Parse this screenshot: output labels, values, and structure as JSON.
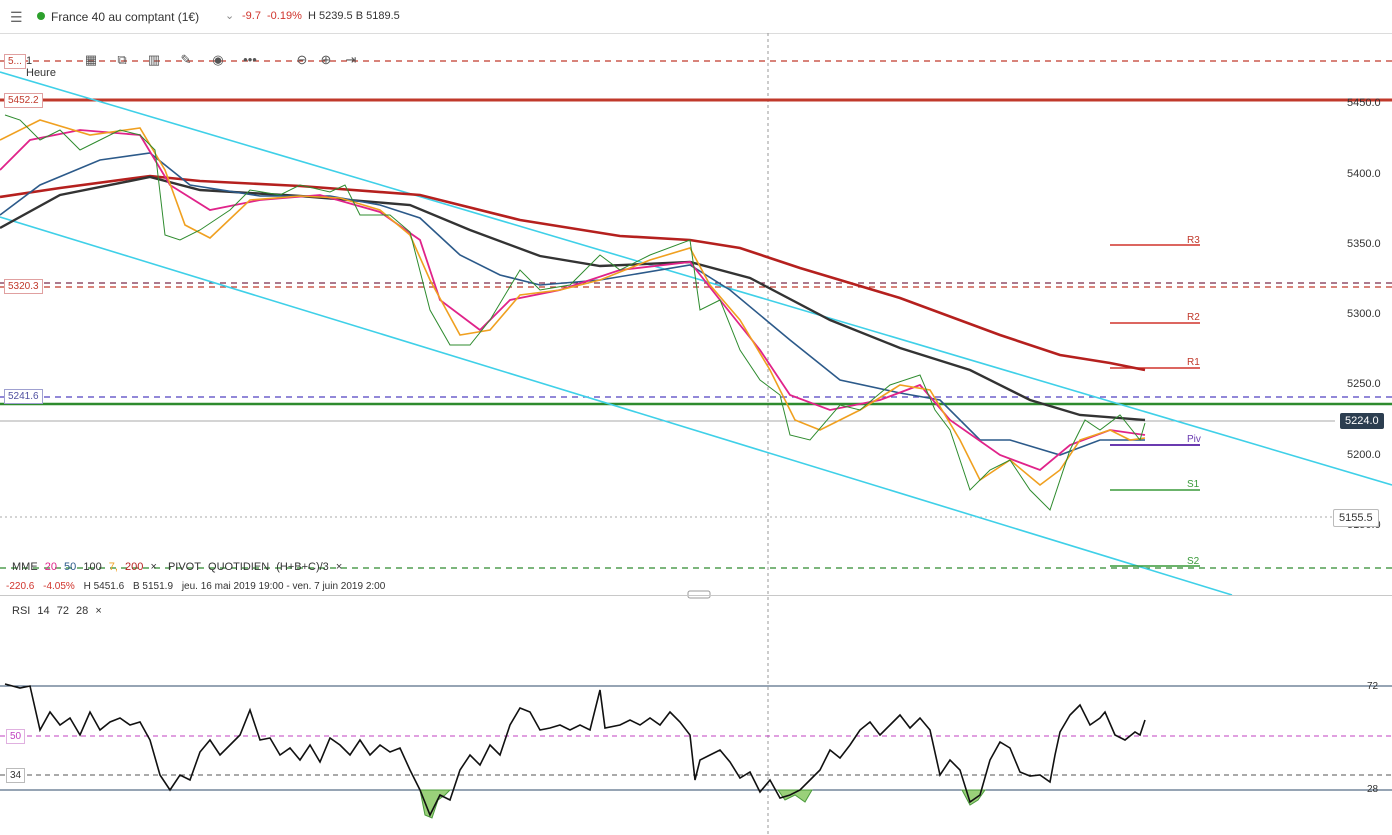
{
  "header": {
    "instrument": "France 40 au comptant (1€)",
    "change": "-9.7",
    "change_pct": "-0.19%",
    "high_low": "H 5239.5  B 5189.5",
    "colors": {
      "up": "#2ca02c",
      "down": "#d0342c"
    }
  },
  "toolbar": {
    "timeframe": "1 Heure",
    "icons": [
      "calendar-icon",
      "candle-type-icon",
      "bar-chart-icon",
      "draw-pen-icon",
      "eye-icon",
      "more-icon",
      "zoom-out-icon",
      "zoom-in-icon",
      "jump-to-end-icon"
    ]
  },
  "price_labels": {
    "top_partial": "5...",
    "level_5452": "5452.2",
    "level_5320": "5320.3",
    "level_5241": "5241.6",
    "current": "5224.0",
    "cursor": "5155.5"
  },
  "price_axis": [
    "5450.0",
    "5400.0",
    "5350.0",
    "5300.0",
    "5250.0",
    "5200.0",
    "5150.0"
  ],
  "pivots": {
    "r3": "R3",
    "r2": "R2",
    "r1": "R1",
    "piv": "Piv",
    "s1": "S1",
    "s2": "S2"
  },
  "legend": {
    "mme": "MME",
    "p20": "20",
    "p50": "50",
    "p100": "100",
    "p7": "7,",
    "p200": "200",
    "pivot_label": "PIVOT",
    "pivot_period": "QUOTIDIEN",
    "pivot_formula": "(H+B+C)/3",
    "close": "×"
  },
  "stats": {
    "change": "-220.6",
    "change_pct": "-4.05%",
    "high": "H 5451.6",
    "low": "B 5151.9",
    "range": "jeu. 16 mai 2019 19:00 - ven. 7 juin 2019 2:00"
  },
  "rsi": {
    "label": "RSI",
    "p1": "14",
    "p2": "72",
    "p3": "28",
    "close": "×",
    "level_72": "72",
    "level_50": "50",
    "level_34": "34",
    "level_28": "28"
  }
}
